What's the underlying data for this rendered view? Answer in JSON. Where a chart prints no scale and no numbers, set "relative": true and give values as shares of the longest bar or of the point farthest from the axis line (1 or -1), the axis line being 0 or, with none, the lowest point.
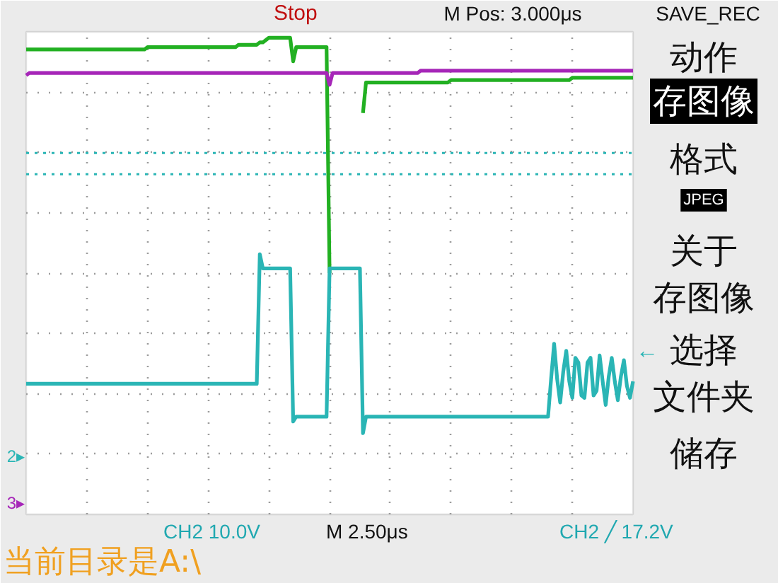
{
  "chart_data": {
    "type": "line",
    "relative": true,
    "grid": true,
    "categories": [
      null,
      null,
      null,
      null,
      null,
      null,
      null,
      null,
      null,
      null,
      null,
      null,
      null,
      null,
      null,
      null,
      null,
      null,
      null,
      null,
      null,
      null,
      null,
      null,
      null,
      null,
      null,
      null,
      null,
      null,
      null,
      null,
      null,
      null,
      null,
      null,
      null,
      null,
      null,
      null,
      null,
      null,
      null,
      null,
      null,
      null,
      null,
      null,
      null,
      null,
      null,
      null,
      null,
      null,
      null,
      null,
      null,
      null,
      null,
      null,
      null,
      null,
      null,
      null,
      null,
      null,
      null,
      null,
      null,
      null,
      null,
      null,
      null,
      null,
      null,
      null,
      null,
      null,
      null,
      null,
      null,
      null,
      null,
      null,
      null,
      null,
      null,
      null,
      null,
      null,
      null,
      null,
      null,
      null,
      null,
      null,
      null,
      null,
      null,
      null,
      null,
      null,
      null,
      null,
      null,
      null,
      null,
      null,
      null,
      null,
      null,
      null,
      null,
      null,
      null,
      null,
      null,
      null,
      null,
      null,
      null,
      null,
      null,
      null,
      null,
      null,
      null,
      null,
      null,
      null,
      null,
      null,
      null,
      null,
      null,
      null,
      null,
      null,
      null,
      null,
      null,
      null,
      null,
      null,
      null,
      null,
      null,
      null,
      null,
      null,
      null,
      null,
      null,
      null,
      null,
      null,
      null,
      null,
      null,
      null,
      null,
      null,
      null,
      null,
      null,
      null,
      null,
      null,
      null,
      null,
      null,
      null,
      null,
      null,
      null,
      null,
      null,
      null,
      null,
      null,
      null,
      null,
      null,
      null,
      null,
      null,
      null,
      null,
      null,
      null,
      null,
      null,
      null,
      null,
      null,
      null,
      null,
      null,
      null,
      null,
      null
    ],
    "series": [
      {
        "color": "#22b022",
        "values": [
          0.95,
          0.95,
          0.95,
          0.95,
          0.95,
          0.95,
          0.95,
          0.95,
          0.95,
          0.95,
          0.95,
          0.95,
          0.95,
          0.95,
          0.95,
          0.95,
          0.95,
          0.95,
          0.95,
          0.95,
          0.95,
          0.95,
          0.95,
          0.95,
          0.95,
          0.95,
          0.95,
          0.95,
          0.95,
          0.95,
          0.95,
          0.95,
          0.95,
          0.95,
          0.95,
          0.95,
          0.95,
          0.95,
          0.95,
          0.95,
          0.96,
          0.96,
          0.96,
          0.96,
          0.96,
          0.96,
          0.96,
          0.96,
          0.96,
          0.96,
          0.96,
          0.96,
          0.96,
          0.96,
          0.96,
          0.96,
          0.96,
          0.96,
          0.96,
          0.96,
          0.96,
          0.96,
          0.96,
          0.96,
          0.96,
          0.96,
          0.96,
          0.96,
          0.96,
          0.96,
          0.97,
          0.97,
          0.97,
          0.97,
          0.97,
          0.97,
          0.97,
          0.98,
          0.98,
          0.99,
          1.0,
          1.0,
          1.0,
          1.0,
          1.0,
          1.0,
          1.0,
          1.0,
          0.9,
          0.96,
          0.96,
          0.96,
          0.96,
          0.96,
          0.96,
          0.96,
          0.96,
          0.96,
          0.96,
          0.96,
          0.0,
          null,
          null,
          null,
          null,
          null,
          null,
          null,
          null,
          null,
          null,
          0.68,
          0.81,
          0.81,
          0.81,
          0.81,
          0.81,
          0.81,
          0.81,
          0.81,
          0.81,
          0.81,
          0.81,
          0.81,
          0.81,
          0.81,
          0.81,
          0.81,
          0.81,
          0.81,
          0.81,
          0.81,
          0.81,
          0.81,
          0.81,
          0.81,
          0.81,
          0.81,
          0.81,
          0.81,
          0.82,
          0.82,
          0.82,
          0.82,
          0.82,
          0.82,
          0.82,
          0.82,
          0.82,
          0.82,
          0.82,
          0.82,
          0.82,
          0.82,
          0.82,
          0.82,
          0.82,
          0.82,
          0.82,
          0.82,
          0.82,
          0.82,
          0.82,
          0.82,
          0.82,
          0.82,
          0.82,
          0.82,
          0.82,
          0.82,
          0.82,
          0.82,
          0.82,
          0.82,
          0.82,
          0.82,
          0.82,
          0.82,
          0.82,
          0.82,
          0.83,
          0.83,
          0.83,
          0.83,
          0.83,
          0.83,
          0.83,
          0.83,
          0.83,
          0.83,
          0.83,
          0.83,
          0.83,
          0.83,
          0.83,
          0.83,
          0.83,
          0.83,
          0.83,
          0.83,
          0.83
        ]
      },
      {
        "color": "#a626b8",
        "values": [
          0.84,
          0.85,
          0.85,
          0.85,
          0.85,
          0.85,
          0.85,
          0.85,
          0.85,
          0.85,
          0.85,
          0.85,
          0.85,
          0.85,
          0.85,
          0.85,
          0.85,
          0.85,
          0.85,
          0.85,
          0.85,
          0.85,
          0.85,
          0.85,
          0.85,
          0.85,
          0.85,
          0.85,
          0.85,
          0.85,
          0.85,
          0.85,
          0.85,
          0.85,
          0.85,
          0.85,
          0.85,
          0.85,
          0.85,
          0.85,
          0.85,
          0.85,
          0.85,
          0.85,
          0.85,
          0.85,
          0.85,
          0.85,
          0.85,
          0.85,
          0.85,
          0.85,
          0.85,
          0.85,
          0.85,
          0.85,
          0.85,
          0.85,
          0.85,
          0.85,
          0.85,
          0.85,
          0.85,
          0.85,
          0.85,
          0.85,
          0.85,
          0.85,
          0.85,
          0.85,
          0.85,
          0.85,
          0.85,
          0.85,
          0.85,
          0.85,
          0.85,
          0.85,
          0.85,
          0.85,
          0.85,
          0.85,
          0.85,
          0.85,
          0.85,
          0.85,
          0.85,
          0.85,
          0.85,
          0.85,
          0.85,
          0.85,
          0.85,
          0.85,
          0.85,
          0.85,
          0.85,
          0.85,
          0.85,
          0.85,
          0.8,
          0.85,
          0.85,
          0.85,
          0.85,
          0.85,
          0.85,
          0.85,
          0.85,
          0.85,
          0.85,
          0.85,
          0.85,
          0.85,
          0.85,
          0.85,
          0.85,
          0.85,
          0.85,
          0.85,
          0.85,
          0.85,
          0.85,
          0.85,
          0.85,
          0.85,
          0.85,
          0.85,
          0.85,
          0.85,
          0.86,
          0.86,
          0.86,
          0.86,
          0.86,
          0.86,
          0.86,
          0.86,
          0.86,
          0.86,
          0.86,
          0.86,
          0.86,
          0.86,
          0.86,
          0.86,
          0.86,
          0.86,
          0.86,
          0.86,
          0.86,
          0.86,
          0.86,
          0.86,
          0.86,
          0.86,
          0.86,
          0.86,
          0.86,
          0.86,
          0.86,
          0.86,
          0.86,
          0.86,
          0.86,
          0.86,
          0.86,
          0.86,
          0.86,
          0.86,
          0.86,
          0.86,
          0.86,
          0.86,
          0.86,
          0.86,
          0.86,
          0.86,
          0.86,
          0.86,
          0.86,
          0.86,
          0.86,
          0.86,
          0.86,
          0.86,
          0.86,
          0.86,
          0.86,
          0.86,
          0.86,
          0.86,
          0.86,
          0.86,
          0.86,
          0.86,
          0.86,
          0.86,
          0.86,
          0.86,
          0.86
        ]
      },
      {
        "color": "#2ab5b5",
        "values": [
          -0.47,
          -0.47,
          -0.47,
          -0.47,
          -0.47,
          -0.47,
          -0.47,
          -0.47,
          -0.47,
          -0.47,
          -0.47,
          -0.47,
          -0.47,
          -0.47,
          -0.47,
          -0.47,
          -0.47,
          -0.47,
          -0.47,
          -0.47,
          -0.47,
          -0.47,
          -0.47,
          -0.47,
          -0.47,
          -0.47,
          -0.47,
          -0.47,
          -0.47,
          -0.47,
          -0.47,
          -0.47,
          -0.47,
          -0.47,
          -0.47,
          -0.47,
          -0.47,
          -0.47,
          -0.47,
          -0.47,
          -0.47,
          -0.47,
          -0.47,
          -0.47,
          -0.47,
          -0.47,
          -0.47,
          -0.47,
          -0.47,
          -0.47,
          -0.47,
          -0.47,
          -0.47,
          -0.47,
          -0.47,
          -0.47,
          -0.47,
          -0.47,
          -0.47,
          -0.47,
          -0.47,
          -0.47,
          -0.47,
          -0.47,
          -0.47,
          -0.47,
          -0.47,
          -0.47,
          -0.47,
          -0.47,
          -0.47,
          -0.47,
          -0.47,
          -0.47,
          -0.47,
          -0.47,
          -0.47,
          0.08,
          0.02,
          0.02,
          0.02,
          0.02,
          0.02,
          0.02,
          0.02,
          0.02,
          0.02,
          0.02,
          -0.63,
          -0.61,
          -0.61,
          -0.61,
          -0.61,
          -0.61,
          -0.61,
          -0.61,
          -0.61,
          -0.61,
          -0.61,
          -0.61,
          0.02,
          0.02,
          0.02,
          0.02,
          0.02,
          0.02,
          0.02,
          0.02,
          0.02,
          0.02,
          0.02,
          -0.68,
          -0.61,
          -0.61,
          -0.61,
          -0.61,
          -0.61,
          -0.61,
          -0.61,
          -0.61,
          -0.61,
          -0.61,
          -0.61,
          -0.61,
          -0.61,
          -0.61,
          -0.61,
          -0.61,
          -0.61,
          -0.61,
          -0.61,
          -0.61,
          -0.61,
          -0.61,
          -0.61,
          -0.61,
          -0.61,
          -0.61,
          -0.61,
          -0.61,
          -0.61,
          -0.61,
          -0.61,
          -0.61,
          -0.61,
          -0.61,
          -0.61,
          -0.61,
          -0.61,
          -0.61,
          -0.61,
          -0.61,
          -0.61,
          -0.61,
          -0.61,
          -0.61,
          -0.61,
          -0.61,
          -0.61,
          -0.61,
          -0.61,
          -0.61,
          -0.61,
          -0.61,
          -0.61,
          -0.61,
          -0.61,
          -0.61,
          -0.61,
          -0.61,
          -0.61,
          -0.61,
          -0.61,
          -0.45,
          -0.3,
          -0.45,
          -0.55,
          -0.42,
          -0.33,
          -0.46,
          -0.53,
          -0.36,
          -0.38,
          -0.52,
          -0.53,
          -0.38,
          -0.36,
          -0.52,
          -0.5,
          -0.35,
          -0.46,
          -0.56,
          -0.44,
          -0.36,
          -0.46,
          -0.54,
          -0.44,
          -0.37,
          -0.48,
          -0.53,
          -0.46
        ]
      }
    ],
    "ref_lines": [
      {
        "axis": "y",
        "value": 0.51,
        "color": "#2ab5b5",
        "line_style": "dotted"
      },
      {
        "axis": "y",
        "value": 0.42,
        "color": "#2ab5b5",
        "line_style": "dotted"
      }
    ],
    "annotations": [
      "Stop",
      "M Pos: 3.000μs",
      "SAVE_REC",
      "动作",
      "存图像",
      "格式",
      "JPEG",
      "关于",
      "存图像",
      "选择",
      "文件夹",
      "储存",
      "CH2 10.0V",
      "M 2.50μs",
      "CH2 ╱ 17.2V",
      "当前目录是A:\\",
      "2▸",
      "3▸",
      "←"
    ]
  }
}
